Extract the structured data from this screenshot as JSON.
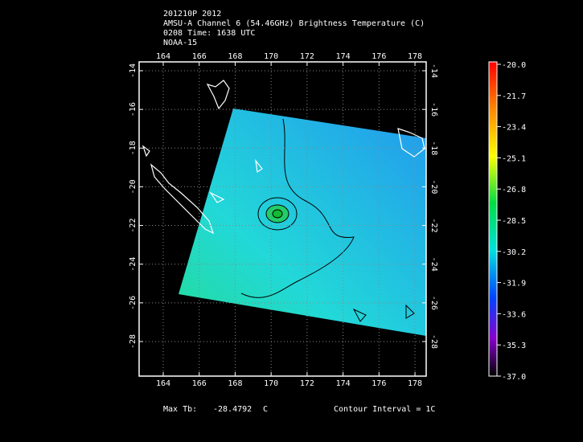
{
  "header": {
    "lines": [
      "201210P 2012",
      "AMSU-A Channel 6 (54.46GHz) Brightness Temperature (C)",
      "0208 Time: 1638 UTC",
      "NOAA-15"
    ]
  },
  "map": {
    "lon_ticks": [
      164,
      166,
      168,
      170,
      172,
      174,
      176,
      178
    ],
    "lat_ticks": [
      -14,
      -16,
      -18,
      -20,
      -22,
      -24,
      -26,
      -28
    ]
  },
  "colorbar": {
    "labels": [
      "-20.0",
      "-21.7",
      "-23.4",
      "-25.1",
      "-26.8",
      "-28.5",
      "-30.2",
      "-31.9",
      "-33.6",
      "-35.3",
      "-37.0"
    ]
  },
  "footer": {
    "max_label": "Max Tb:",
    "max_value": "-28.4792",
    "max_unit": "C",
    "contour": "Contour Interval = 1C"
  }
}
